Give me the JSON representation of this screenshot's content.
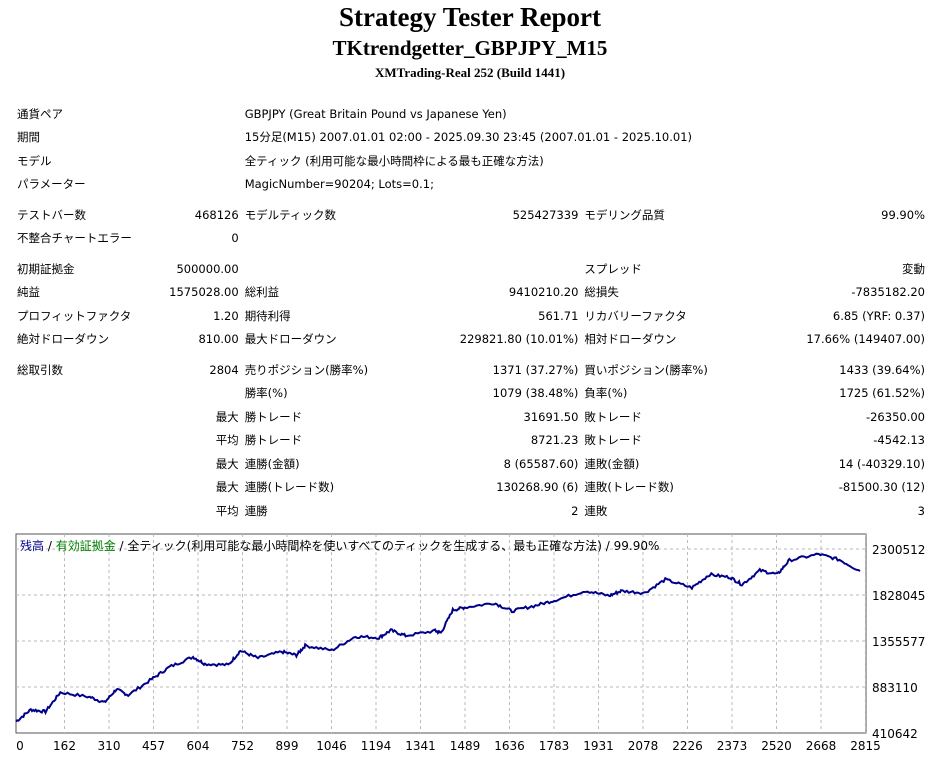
{
  "header": {
    "title": "Strategy Tester Report",
    "expert": "TKtrendgetter_GBPJPY_M15",
    "server": "XMTrading-Real 252 (Build 1441)"
  },
  "info": [
    {
      "label": "通貨ペア",
      "value": "GBPJPY (Great Britain Pound vs Japanese Yen)"
    },
    {
      "label": "期間",
      "value": "15分足(M15) 2007.01.01 02:00 - 2025.09.30 23:45 (2007.01.01 - 2025.10.01)"
    },
    {
      "label": "モデル",
      "value": "全ティック (利用可能な最小時間枠による最も正確な方法)"
    },
    {
      "label": "パラメーター",
      "value": "MagicNumber=90204; Lots=0.1;"
    }
  ],
  "stats": [
    [
      "gap"
    ],
    [
      "テストバー数",
      "468126",
      "モデルティック数",
      "525427339",
      "モデリング品質",
      "99.90%"
    ],
    [
      "不整合チャートエラー",
      "0",
      "",
      "",
      "",
      ""
    ],
    [
      "gap"
    ],
    [
      "初期証拠金",
      "500000.00",
      "",
      "",
      "スプレッド",
      "変動"
    ],
    [
      "純益",
      "1575028.00",
      "総利益",
      "9410210.20",
      "総損失",
      "-7835182.20"
    ],
    [
      "プロフィットファクタ",
      "1.20",
      "期待利得",
      "561.71",
      "リカバリーファクタ",
      "6.85 (YRF: 0.37)"
    ],
    [
      "絶対ドローダウン",
      "810.00",
      "最大ドローダウン",
      "229821.80 (10.01%)",
      "相対ドローダウン",
      "17.66% (149407.00)"
    ],
    [
      "gap"
    ],
    [
      "総取引数",
      "2804",
      "売りポジション(勝率%)",
      "1371 (37.27%)",
      "買いポジション(勝率%)",
      "1433 (39.64%)"
    ],
    [
      "",
      "",
      "勝率(%)",
      "1079 (38.48%)",
      "負率(%)",
      "1725 (61.52%)"
    ],
    [
      "",
      "最大",
      "勝トレード",
      "31691.50",
      "敗トレード",
      "-26350.00"
    ],
    [
      "",
      "平均",
      "勝トレード",
      "8721.23",
      "敗トレード",
      "-4542.13"
    ],
    [
      "",
      "最大",
      "連勝(金額)",
      "8 (65587.60)",
      "連敗(金額)",
      "14 (-40329.10)"
    ],
    [
      "",
      "最大",
      "連勝(トレード数)",
      "130268.90 (6)",
      "連敗(トレード数)",
      "-81500.30 (12)"
    ],
    [
      "",
      "平均",
      "連勝",
      "2",
      "連敗",
      "3"
    ]
  ],
  "chart_data": {
    "type": "line",
    "legend": {
      "balance": "残高",
      "sep1": " / ",
      "equity": "有効証拠金",
      "sep2": " / ",
      "model": "全ティック(利用可能な最小時間枠を使いすべてのティックを生成する、最も正確な方法)",
      "sep3": " / ",
      "quality": "99.90%"
    },
    "colors": {
      "balance": "#00008b",
      "equity": "#008000"
    },
    "x_ticks": [
      "0",
      "162",
      "310",
      "457",
      "604",
      "752",
      "899",
      "1046",
      "1194",
      "1341",
      "1489",
      "1636",
      "1783",
      "1931",
      "2078",
      "2226",
      "2373",
      "2520",
      "2668",
      "2815"
    ],
    "y_ticks": [
      "2300512",
      "1828045",
      "1355577",
      "883110",
      "410642"
    ],
    "ylim": [
      410642,
      2455000
    ],
    "xlim": [
      0,
      2880
    ],
    "series": [
      {
        "name": "残高",
        "x": [
          0,
          50,
          100,
          150,
          250,
          300,
          340,
          380,
          460,
          520,
          600,
          640,
          720,
          760,
          820,
          900,
          950,
          980,
          1070,
          1150,
          1230,
          1270,
          1320,
          1420,
          1440,
          1480,
          1520,
          1620,
          1680,
          1760,
          1830,
          1930,
          2010,
          2050,
          2130,
          2200,
          2290,
          2350,
          2420,
          2460,
          2520,
          2580,
          2620,
          2720,
          2790,
          2860
        ],
        "y": [
          528000,
          650000,
          630000,
          828000,
          780000,
          724000,
          860000,
          800000,
          964000,
          1089000,
          1193000,
          1120000,
          1110000,
          1256000,
          1180000,
          1246000,
          1210000,
          1308000,
          1260000,
          1402000,
          1390000,
          1465000,
          1410000,
          1460000,
          1440000,
          1674000,
          1700000,
          1747000,
          1663000,
          1720000,
          1778000,
          1872000,
          1820000,
          1870000,
          1850000,
          1987000,
          1903000,
          2039000,
          2010000,
          1935000,
          2081000,
          2040000,
          2185000,
          2248000,
          2190000,
          2075028
        ]
      }
    ]
  }
}
